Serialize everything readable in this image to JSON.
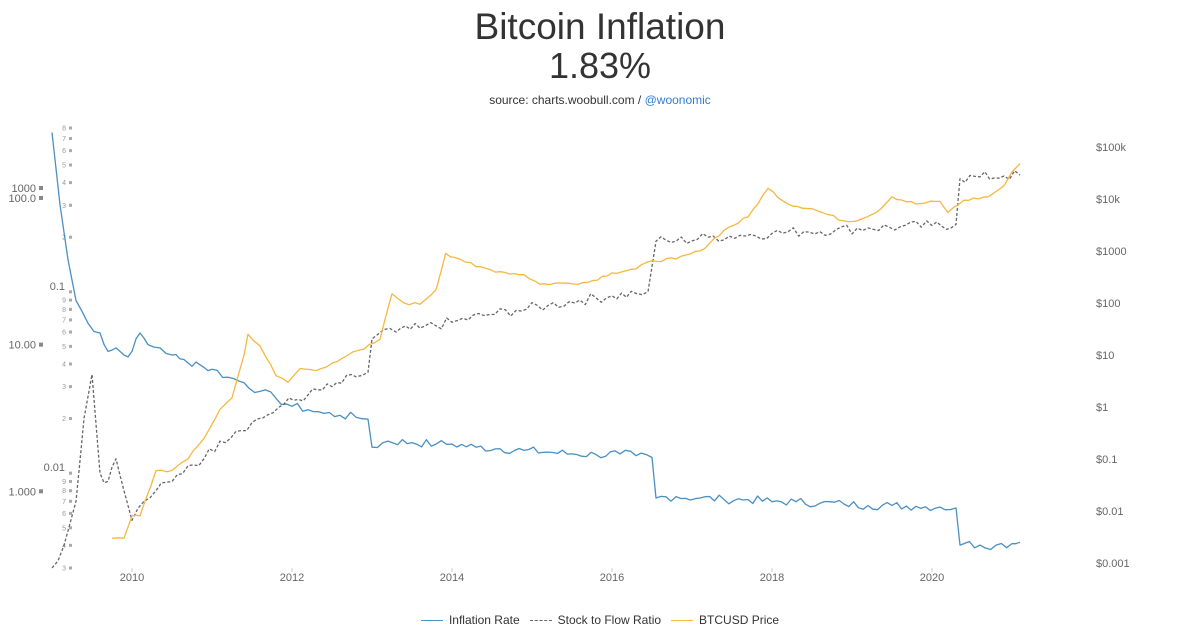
{
  "header": {
    "title": "Bitcoin Inflation",
    "value": "1.83%",
    "source_prefix": "source: charts.woobull.com / ",
    "source_handle": "@woonomic"
  },
  "chart_data": {
    "type": "line",
    "title": "Bitcoin Inflation",
    "subtitle": "1.83%",
    "xlim": [
      2009.0,
      2021.6
    ],
    "x_ticks": [
      {
        "value": 2010,
        "label": "2010"
      },
      {
        "value": 2012,
        "label": "2012"
      },
      {
        "value": 2014,
        "label": "2014"
      },
      {
        "value": 2016,
        "label": "2016"
      },
      {
        "value": 2018,
        "label": "2018"
      },
      {
        "value": 2020,
        "label": "2020"
      }
    ],
    "y_left": {
      "scale": "log",
      "range": [
        0.3,
        300
      ],
      "ticks": [
        {
          "value": 1000,
          "label": "1000"
        },
        {
          "value": 100,
          "label": "100.0"
        },
        {
          "value": 10,
          "label": "10.00"
        },
        {
          "value": 1,
          "label": "1.000"
        }
      ]
    },
    "y_right": {
      "scale": "log",
      "range": [
        0.001,
        100000
      ],
      "ticks": [
        {
          "value": 100000,
          "label": "$100k"
        },
        {
          "value": 10000,
          "label": "$10k"
        },
        {
          "value": 1000,
          "label": "$1000"
        },
        {
          "value": 100,
          "label": "$100"
        },
        {
          "value": 10,
          "label": "$10"
        },
        {
          "value": 1,
          "label": "$1"
        },
        {
          "value": 0.1,
          "label": "$0.1"
        },
        {
          "value": 0.01,
          "label": "$0.01"
        },
        {
          "value": 0.001,
          "label": "$0.001"
        }
      ]
    },
    "y_inner": {
      "scale": "log",
      "range": [
        0.003,
        0.8
      ],
      "labeled_ticks": [
        {
          "value": 0.1,
          "label": "0.1"
        },
        {
          "value": 0.01,
          "label": "0.01"
        }
      ]
    },
    "grid": false,
    "legend_position": "bottom-center",
    "series": [
      {
        "name": "Inflation Rate",
        "axis": "left",
        "color": "#4a90c2",
        "style": "solid",
        "x": [
          2009.0,
          2009.1,
          2009.2,
          2009.3,
          2009.45,
          2009.6,
          2009.7,
          2009.8,
          2009.9,
          2010.0,
          2010.1,
          2010.2,
          2010.35,
          2010.5,
          2010.6,
          2010.7,
          2010.8,
          2010.9,
          2011.0,
          2011.2,
          2011.4,
          2011.6,
          2011.8,
          2012.0,
          2012.2,
          2012.4,
          2012.6,
          2012.8,
          2012.95,
          2013.0,
          2013.2,
          2013.5,
          2013.8,
          2014.0,
          2014.3,
          2014.6,
          2014.9,
          2015.2,
          2015.5,
          2015.8,
          2016.1,
          2016.3,
          2016.5,
          2016.55,
          2016.8,
          2017.1,
          2017.4,
          2017.7,
          2018.0,
          2018.3,
          2018.6,
          2018.9,
          2019.2,
          2019.5,
          2019.8,
          2020.1,
          2020.3,
          2020.35,
          2020.4,
          2020.6,
          2020.8,
          2021.0,
          2021.1
        ],
        "y": [
          280,
          90,
          38,
          20,
          14,
          12,
          9,
          9.5,
          8.5,
          9,
          12,
          10,
          9.5,
          8.5,
          8,
          7.5,
          7.6,
          7,
          6.8,
          6,
          5.5,
          4.8,
          4.3,
          3.8,
          3.6,
          3.4,
          3.3,
          3.2,
          3.1,
          2.0,
          2.2,
          2.15,
          2.1,
          2.1,
          2.0,
          1.95,
          1.9,
          1.85,
          1.8,
          1.78,
          1.8,
          1.75,
          1.7,
          0.9,
          0.92,
          0.9,
          0.88,
          0.88,
          0.85,
          0.85,
          0.83,
          0.82,
          0.8,
          0.8,
          0.79,
          0.78,
          0.77,
          0.43,
          0.44,
          0.43,
          0.43,
          0.44,
          0.45
        ]
      },
      {
        "name": "Stock to Flow Ratio",
        "axis": "inner",
        "color": "#666666",
        "style": "dashed",
        "x": [
          2009.0,
          2009.15,
          2009.3,
          2009.4,
          2009.5,
          2009.6,
          2009.7,
          2009.8,
          2009.9,
          2010.0,
          2010.15,
          2010.3,
          2010.5,
          2010.7,
          2010.9,
          2011.1,
          2011.3,
          2011.5,
          2011.7,
          2011.9,
          2012.2,
          2012.5,
          2012.8,
          2012.95,
          2013.0,
          2013.15,
          2013.3,
          2013.6,
          2014.0,
          2014.4,
          2014.8,
          2015.2,
          2015.6,
          2016.0,
          2016.3,
          2016.45,
          2016.55,
          2016.8,
          2017.2,
          2017.6,
          2018.0,
          2018.4,
          2018.8,
          2019.2,
          2019.6,
          2020.0,
          2020.3,
          2020.35,
          2020.6,
          2020.9,
          2021.1
        ],
        "y": [
          0.003,
          0.004,
          0.007,
          0.02,
          0.035,
          0.01,
          0.009,
          0.012,
          0.008,
          0.0055,
          0.007,
          0.008,
          0.009,
          0.011,
          0.012,
          0.015,
          0.017,
          0.019,
          0.021,
          0.024,
          0.027,
          0.03,
          0.034,
          0.036,
          0.055,
          0.062,
          0.06,
          0.063,
          0.068,
          0.074,
          0.079,
          0.084,
          0.09,
          0.095,
          0.098,
          0.1,
          0.19,
          0.19,
          0.2,
          0.205,
          0.21,
          0.215,
          0.22,
          0.225,
          0.228,
          0.232,
          0.235,
          0.42,
          0.43,
          0.435,
          0.44
        ]
      },
      {
        "name": "BTCUSD Price",
        "axis": "right",
        "color": "#f5b841",
        "style": "solid",
        "x": [
          2009.75,
          2009.9,
          2010.0,
          2010.1,
          2010.3,
          2010.5,
          2010.55,
          2010.7,
          2010.9,
          2011.1,
          2011.25,
          2011.4,
          2011.45,
          2011.6,
          2011.8,
          2011.95,
          2012.1,
          2012.3,
          2012.5,
          2012.7,
          2012.9,
          2013.1,
          2013.25,
          2013.4,
          2013.6,
          2013.8,
          2013.92,
          2014.1,
          2014.3,
          2014.6,
          2014.9,
          2015.1,
          2015.4,
          2015.7,
          2016.0,
          2016.3,
          2016.5,
          2016.8,
          2017.1,
          2017.4,
          2017.7,
          2017.95,
          2018.2,
          2018.5,
          2018.9,
          2019.0,
          2019.3,
          2019.5,
          2019.8,
          2020.1,
          2020.2,
          2020.4,
          2020.7,
          2020.9,
          2021.0,
          2021.1
        ],
        "y": [
          0.003,
          0.003,
          0.008,
          0.008,
          0.06,
          0.06,
          0.07,
          0.1,
          0.25,
          0.9,
          1.5,
          10,
          25,
          15,
          4,
          3,
          5.5,
          5,
          7,
          10,
          13,
          20,
          150,
          100,
          95,
          180,
          900,
          700,
          500,
          400,
          350,
          230,
          240,
          250,
          380,
          450,
          650,
          700,
          1000,
          2500,
          4500,
          16000,
          8000,
          6500,
          3800,
          3700,
          5500,
          11000,
          8000,
          9000,
          5500,
          9500,
          11000,
          18000,
          33000,
          48000
        ]
      }
    ]
  },
  "legend": {
    "items": [
      {
        "label": "Inflation Rate",
        "color": "#4a90c2",
        "style": "solid"
      },
      {
        "label": "Stock to Flow Ratio",
        "color": "#666666",
        "style": "dashed"
      },
      {
        "label": "BTCUSD Price",
        "color": "#f5b841",
        "style": "solid"
      }
    ]
  }
}
